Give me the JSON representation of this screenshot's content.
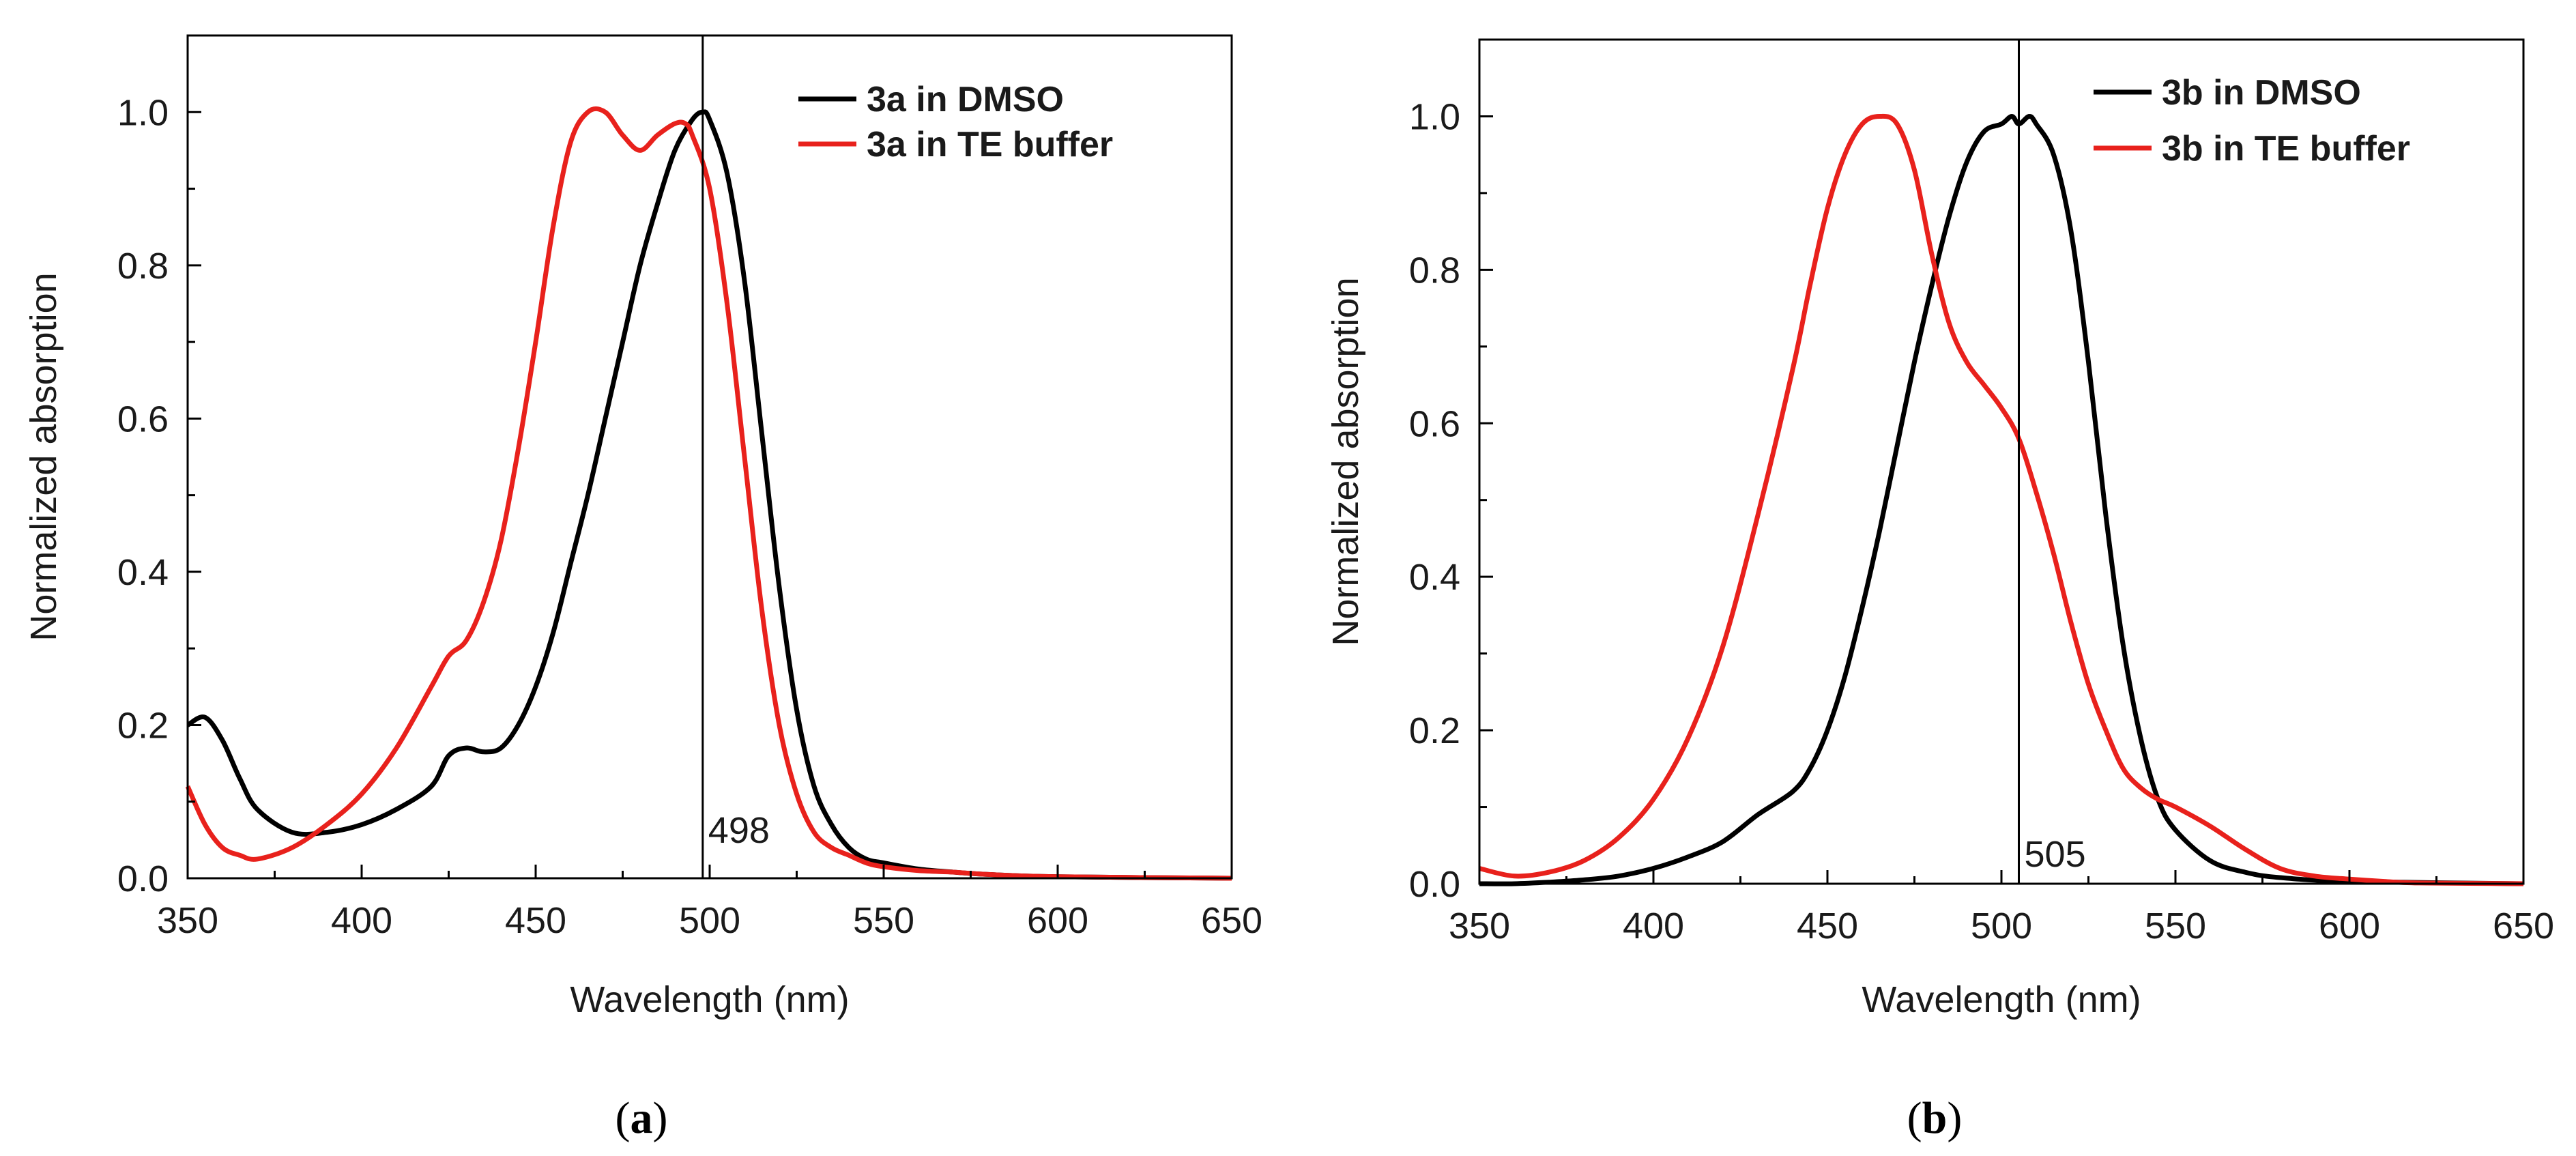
{
  "figure": {
    "panels": [
      {
        "prefix": "(",
        "letter": "a",
        "suffix": ")"
      },
      {
        "prefix": "(",
        "letter": "b",
        "suffix": ")"
      }
    ]
  },
  "chart_data": [
    {
      "type": "line",
      "xlabel": "Wavelength (nm)",
      "ylabel": "Normalized absorption",
      "xlim": [
        350,
        650
      ],
      "ylim": [
        0.0,
        1.1
      ],
      "xticks": [
        "350",
        "400",
        "450",
        "500",
        "550",
        "600",
        "650"
      ],
      "yticks": [
        "0.0",
        "0.2",
        "0.4",
        "0.6",
        "0.8",
        "1.0"
      ],
      "legend_position": "top-right",
      "vline": {
        "x": 498,
        "label": "498"
      },
      "series": [
        {
          "name": "3a in DMSO",
          "color": "#000000",
          "x": [
            350,
            355,
            360,
            365,
            370,
            380,
            390,
            400,
            410,
            420,
            425,
            430,
            435,
            440,
            445,
            450,
            455,
            460,
            465,
            470,
            475,
            480,
            485,
            490,
            495,
            498,
            500,
            505,
            510,
            515,
            520,
            525,
            530,
            535,
            540,
            545,
            550,
            560,
            570,
            580,
            600,
            650
          ],
          "y": [
            0.2,
            0.21,
            0.18,
            0.13,
            0.09,
            0.06,
            0.06,
            0.07,
            0.09,
            0.12,
            0.16,
            0.17,
            0.165,
            0.17,
            0.2,
            0.25,
            0.32,
            0.41,
            0.5,
            0.6,
            0.7,
            0.8,
            0.88,
            0.95,
            0.99,
            1.0,
            0.99,
            0.92,
            0.78,
            0.58,
            0.38,
            0.22,
            0.12,
            0.07,
            0.04,
            0.025,
            0.02,
            0.012,
            0.008,
            0.005,
            0.002,
            0.0
          ]
        },
        {
          "name": "3a in TE buffer",
          "color": "#e8211c",
          "x": [
            350,
            355,
            360,
            365,
            370,
            380,
            390,
            400,
            410,
            420,
            425,
            430,
            435,
            440,
            445,
            450,
            455,
            460,
            465,
            470,
            475,
            480,
            485,
            490,
            493,
            495,
            500,
            505,
            510,
            515,
            520,
            525,
            530,
            535,
            540,
            545,
            550,
            560,
            570,
            580,
            600,
            650
          ],
          "y": [
            0.12,
            0.07,
            0.04,
            0.03,
            0.025,
            0.04,
            0.07,
            0.11,
            0.17,
            0.25,
            0.29,
            0.31,
            0.36,
            0.44,
            0.56,
            0.7,
            0.85,
            0.96,
            1.0,
            1.0,
            0.97,
            0.95,
            0.97,
            0.985,
            0.985,
            0.97,
            0.9,
            0.75,
            0.55,
            0.35,
            0.2,
            0.11,
            0.06,
            0.04,
            0.03,
            0.02,
            0.015,
            0.01,
            0.008,
            0.005,
            0.002,
            0.0
          ]
        }
      ]
    },
    {
      "type": "line",
      "xlabel": "Wavelength (nm)",
      "ylabel": "Normalized absorption",
      "xlim": [
        350,
        650
      ],
      "ylim": [
        0.0,
        1.1
      ],
      "xticks": [
        "350",
        "400",
        "450",
        "500",
        "550",
        "600",
        "650"
      ],
      "yticks": [
        "0.0",
        "0.2",
        "0.4",
        "0.6",
        "0.8",
        "1.0"
      ],
      "legend_position": "top-right",
      "vline": {
        "x": 505,
        "label": "505"
      },
      "series": [
        {
          "name": "3b in DMSO",
          "color": "#000000",
          "x": [
            350,
            360,
            370,
            380,
            390,
            400,
            410,
            420,
            430,
            440,
            445,
            450,
            455,
            460,
            465,
            470,
            475,
            480,
            485,
            490,
            495,
            500,
            503,
            505,
            508,
            510,
            515,
            520,
            525,
            530,
            535,
            540,
            545,
            550,
            560,
            570,
            580,
            600,
            650
          ],
          "y": [
            0.0,
            0.0,
            0.002,
            0.005,
            0.01,
            0.02,
            0.035,
            0.055,
            0.09,
            0.12,
            0.15,
            0.2,
            0.27,
            0.36,
            0.46,
            0.57,
            0.68,
            0.78,
            0.87,
            0.94,
            0.98,
            0.99,
            1.0,
            0.99,
            1.0,
            0.99,
            0.95,
            0.85,
            0.68,
            0.48,
            0.31,
            0.19,
            0.11,
            0.07,
            0.03,
            0.015,
            0.008,
            0.003,
            0.0
          ]
        },
        {
          "name": "3b in TE buffer",
          "color": "#e8211c",
          "x": [
            350,
            360,
            370,
            380,
            390,
            400,
            410,
            420,
            430,
            440,
            445,
            450,
            455,
            460,
            465,
            470,
            475,
            480,
            485,
            490,
            495,
            500,
            505,
            510,
            515,
            520,
            525,
            530,
            535,
            540,
            545,
            550,
            560,
            570,
            580,
            590,
            600,
            610,
            620,
            650
          ],
          "y": [
            0.02,
            0.01,
            0.015,
            0.03,
            0.06,
            0.11,
            0.19,
            0.31,
            0.48,
            0.67,
            0.78,
            0.88,
            0.95,
            0.99,
            1.0,
            0.99,
            0.93,
            0.82,
            0.73,
            0.68,
            0.65,
            0.62,
            0.58,
            0.51,
            0.43,
            0.34,
            0.26,
            0.2,
            0.15,
            0.125,
            0.11,
            0.1,
            0.075,
            0.045,
            0.02,
            0.01,
            0.006,
            0.003,
            0.001,
            0.0
          ]
        }
      ]
    }
  ]
}
